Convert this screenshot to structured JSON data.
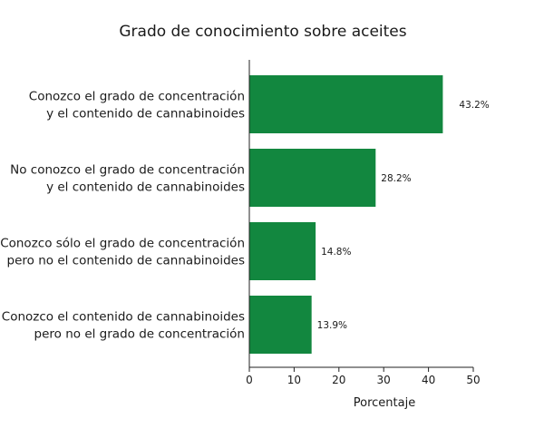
{
  "chart_data": {
    "type": "bar",
    "orientation": "horizontal",
    "title": "Grado de conocimiento sobre aceites",
    "xlabel": "Porcentaje",
    "ylabel": "",
    "xlim": [
      0,
      50
    ],
    "xticks": [
      0,
      10,
      20,
      30,
      40,
      50
    ],
    "grid": false,
    "bar_color": "#12873f",
    "categories": [
      [
        "Conozco el grado de concentración",
        "y el contenido de cannabinoides"
      ],
      [
        "No conozco el grado de concentración",
        "y el contenido de cannabinoides"
      ],
      [
        "Conozco sólo el grado de concentración",
        "pero no el contenido de cannabinoides"
      ],
      [
        "Conozco el contenido de cannabinoides",
        "pero no el grado de concentración"
      ]
    ],
    "values": [
      43.2,
      28.2,
      14.8,
      13.9
    ],
    "data_labels": [
      "43.2%",
      "28.2%",
      "14.8%",
      "13.9%"
    ]
  }
}
